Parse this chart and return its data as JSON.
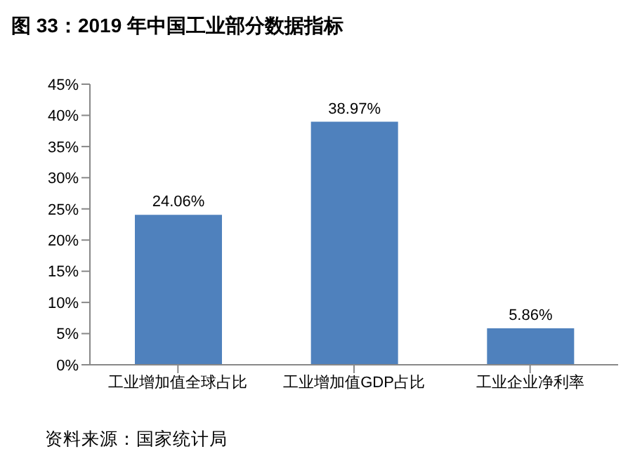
{
  "chart_data": {
    "type": "bar",
    "title": "图 33：2019 年中国工业部分数据指标",
    "categories": [
      "工业增加值全球占比",
      "工业增加值GDP占比",
      "工业企业净利率"
    ],
    "values": [
      24.06,
      38.97,
      5.86
    ],
    "value_labels": [
      "24.06%",
      "38.97%",
      "5.86%"
    ],
    "color": "#4f81bd",
    "ylim": [
      0,
      45
    ],
    "yticks": [
      {
        "value": 0,
        "label": "0%"
      },
      {
        "value": 5,
        "label": "5%"
      },
      {
        "value": 10,
        "label": "10%"
      },
      {
        "value": 15,
        "label": "15%"
      },
      {
        "value": 20,
        "label": "20%"
      },
      {
        "value": 25,
        "label": "25%"
      },
      {
        "value": 30,
        "label": "30%"
      },
      {
        "value": 35,
        "label": "35%"
      },
      {
        "value": 40,
        "label": "40%"
      },
      {
        "value": 45,
        "label": "45%"
      }
    ],
    "grid": false,
    "annotations": [
      "资料来源：国家统计局"
    ]
  }
}
